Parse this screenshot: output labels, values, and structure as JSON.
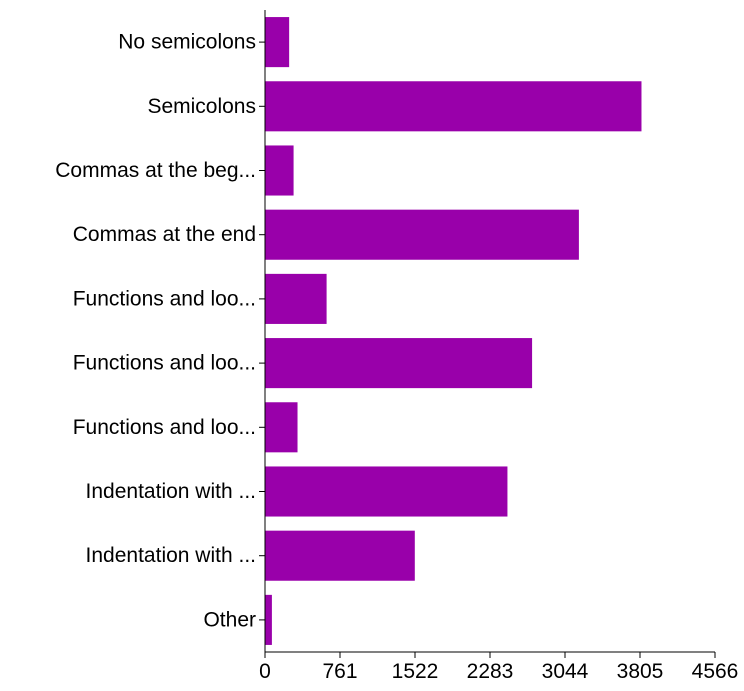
{
  "chart_data": {
    "type": "bar",
    "orientation": "horizontal",
    "categories": [
      "No semicolons",
      "Semicolons",
      "Commas at the beg...",
      "Commas at the end",
      "Functions and loo...",
      "Functions and loo...",
      "Functions and loo...",
      "Indentation with ...",
      "Indentation with ...",
      "Other"
    ],
    "values": [
      245,
      3820,
      290,
      3185,
      625,
      2710,
      330,
      2460,
      1520,
      70
    ],
    "xlim": [
      0,
      4566
    ],
    "x_ticks": [
      "0",
      "761",
      "1522",
      "2283",
      "3044",
      "3805",
      "4566"
    ],
    "bar_color": "#9900aa",
    "title": "",
    "xlabel": "",
    "ylabel": "",
    "grid": false,
    "legend": "none"
  }
}
